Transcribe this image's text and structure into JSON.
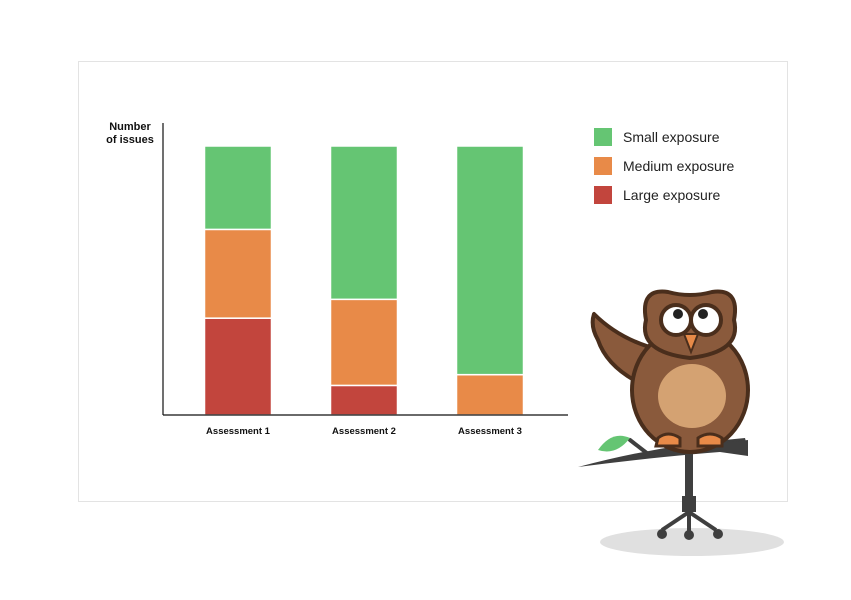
{
  "colors": {
    "small": "#65c573",
    "medium": "#e88a48",
    "large": "#c2453d",
    "axis": "#111111"
  },
  "chart_data": {
    "type": "bar",
    "stacked": true,
    "normalized": true,
    "categories": [
      "Assessment 1",
      "Assessment 2",
      "Assessment 3"
    ],
    "series": [
      {
        "name": "Large exposure",
        "color": "#c2453d",
        "values": [
          36,
          11,
          0
        ]
      },
      {
        "name": "Medium exposure",
        "color": "#e88a48",
        "values": [
          33,
          32,
          15
        ]
      },
      {
        "name": "Small exposure",
        "color": "#65c573",
        "values": [
          31,
          57,
          85
        ]
      }
    ],
    "ylabel": "Number\nof issues",
    "xlabel": "",
    "ylim": [
      0,
      100
    ],
    "grid": false,
    "legend_position": "top-right",
    "legend": [
      "Small exposure",
      "Medium exposure",
      "Large exposure"
    ]
  },
  "illustration": {
    "mascot": "owl-on-swivel-stool-icon"
  }
}
